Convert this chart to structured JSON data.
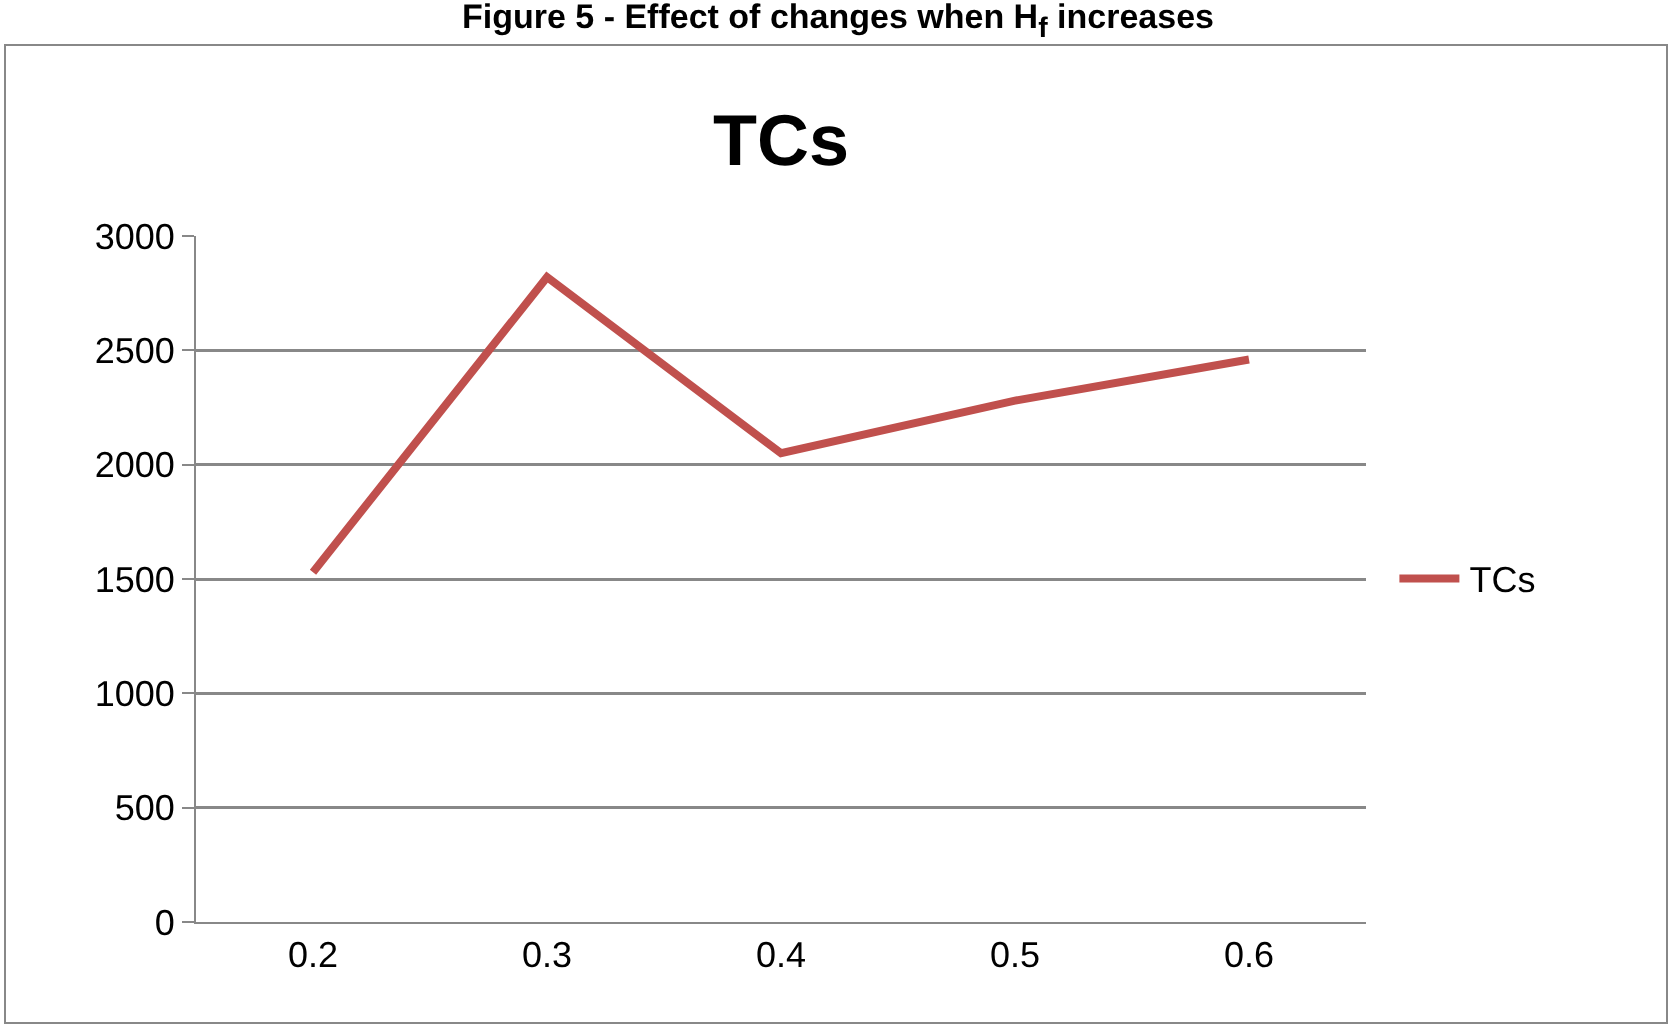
{
  "chart_data": {
    "type": "line",
    "title": "TCs",
    "annotations": [
      "Figure 5 - Effect of changes when H$_{f}$ increases"
    ],
    "categories": [
      "0.2",
      "0.3",
      "0.4",
      "0.5",
      "0.6"
    ],
    "series": [
      {
        "name": "TCs",
        "color": "#c0504d",
        "values": [
          1530,
          2820,
          2050,
          2280,
          2460
        ]
      }
    ],
    "ylim": [
      0,
      3000
    ],
    "yticks": [
      0,
      500,
      1000,
      1500,
      2000,
      2500,
      3000
    ],
    "grid": "y",
    "legend": "right",
    "marker": "none",
    "line_style": "solid"
  }
}
